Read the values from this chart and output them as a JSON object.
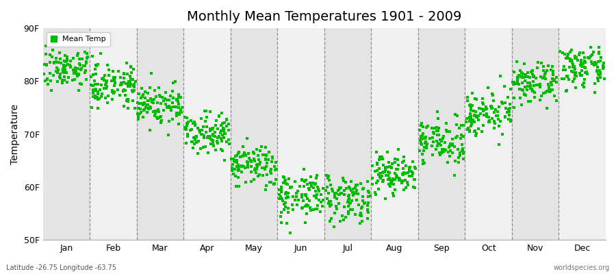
{
  "title": "Monthly Mean Temperatures 1901 - 2009",
  "ylabel": "Temperature",
  "xlabel_bottom_left": "Latitude -26.75 Longitude -63.75",
  "xlabel_bottom_right": "worldspecies.org",
  "ylim": [
    50,
    90
  ],
  "yticks": [
    50,
    60,
    70,
    80,
    90
  ],
  "ytick_labels": [
    "50F",
    "60F",
    "70F",
    "80F",
    "90F"
  ],
  "months": [
    "Jan",
    "Feb",
    "Mar",
    "Apr",
    "May",
    "Jun",
    "Jul",
    "Aug",
    "Sep",
    "Oct",
    "Nov",
    "Dec"
  ],
  "mean_temps_F": [
    82.5,
    79.5,
    75.5,
    70.5,
    64.0,
    58.5,
    58.0,
    62.5,
    68.5,
    74.0,
    79.5,
    82.5
  ],
  "std_temps_F": [
    1.8,
    2.0,
    2.0,
    1.8,
    2.0,
    2.2,
    2.2,
    2.0,
    2.0,
    2.0,
    1.8,
    1.8
  ],
  "n_years": 109,
  "dot_color": "#00BB00",
  "legend_label": "Mean Temp",
  "marker_size": 5,
  "bg_light": "#f0f0f0",
  "bg_dark": "#e4e4e4",
  "vline_color": "#666666",
  "title_fontsize": 14,
  "axis_fontsize": 9,
  "ylabel_fontsize": 10
}
